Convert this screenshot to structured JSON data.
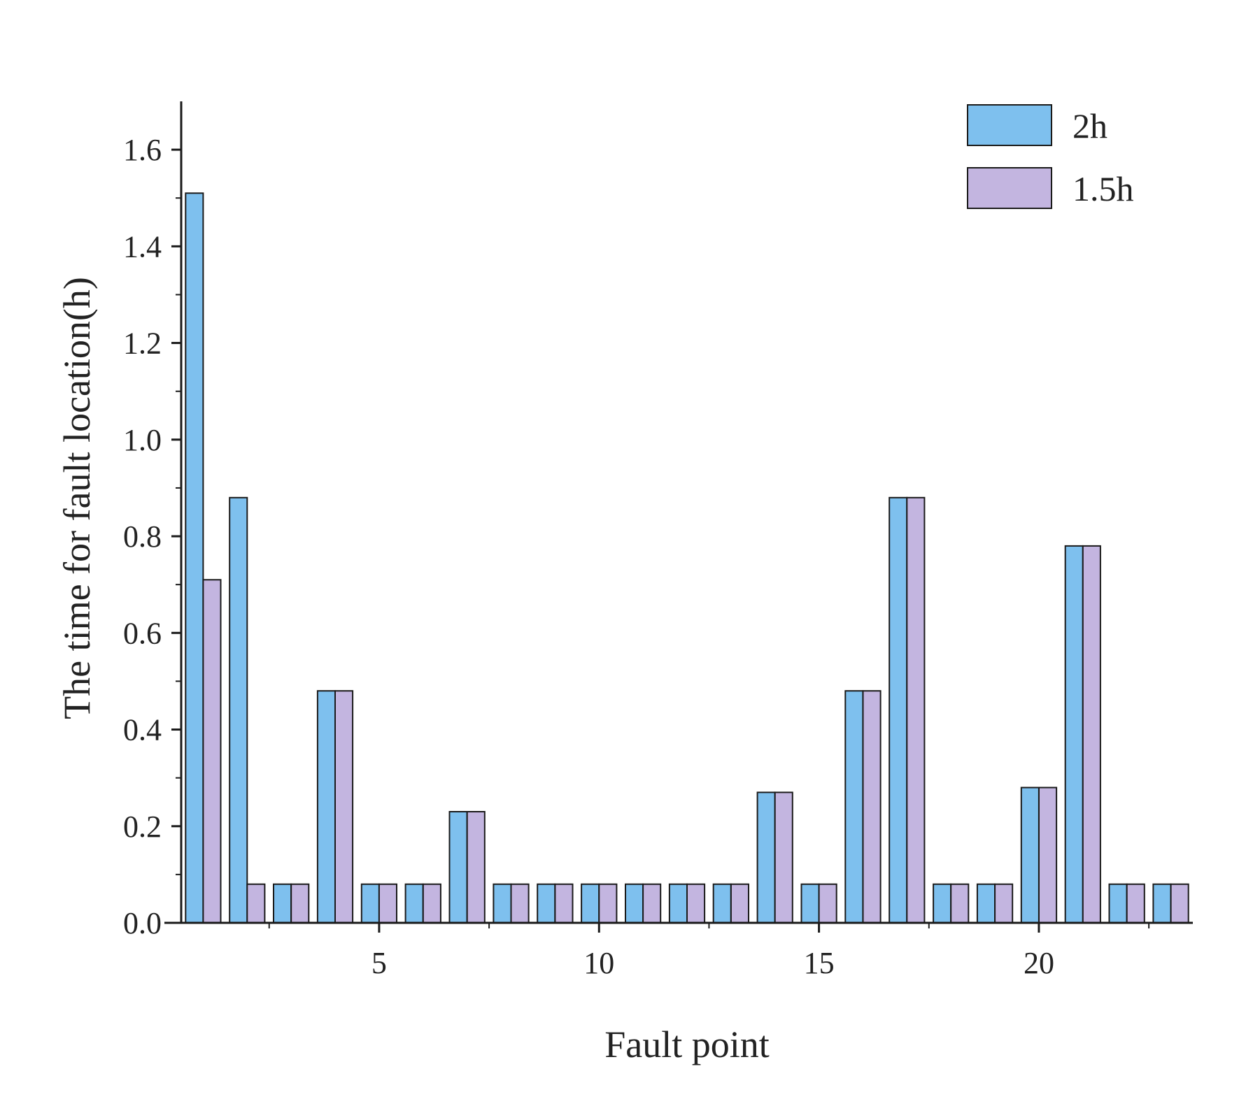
{
  "chart_data": {
    "type": "bar",
    "title": "",
    "xlabel": "Fault point",
    "ylabel": "The time for fault location(h)",
    "categories": [
      1,
      2,
      3,
      4,
      5,
      6,
      7,
      8,
      9,
      10,
      11,
      12,
      13,
      14,
      15,
      16,
      17,
      18,
      19,
      20,
      21,
      22,
      23
    ],
    "x_tick_labels": [
      "5",
      "10",
      "15",
      "20"
    ],
    "x_tick_values": [
      5,
      10,
      15,
      20
    ],
    "y_tick_labels": [
      "0.0",
      "0.2",
      "0.4",
      "0.6",
      "0.8",
      "1.0",
      "1.2",
      "1.4",
      "1.6"
    ],
    "y_tick_values": [
      0.0,
      0.2,
      0.4,
      0.6,
      0.8,
      1.0,
      1.2,
      1.4,
      1.6
    ],
    "ylim": [
      0,
      1.7
    ],
    "xlim": [
      0.5,
      23.5
    ],
    "grid": false,
    "legend_position": "top-right",
    "series": [
      {
        "name": "2h",
        "color": "#7EC0EE",
        "values": [
          1.51,
          0.88,
          0.08,
          0.48,
          0.08,
          0.08,
          0.23,
          0.08,
          0.08,
          0.08,
          0.08,
          0.08,
          0.08,
          0.27,
          0.08,
          0.48,
          0.88,
          0.08,
          0.08,
          0.28,
          0.78,
          0.08,
          0.08
        ]
      },
      {
        "name": "1.5h",
        "color": "#C3B5E0",
        "values": [
          0.71,
          0.08,
          0.08,
          0.48,
          0.08,
          0.08,
          0.23,
          0.08,
          0.08,
          0.08,
          0.08,
          0.08,
          0.08,
          0.27,
          0.08,
          0.48,
          0.88,
          0.08,
          0.08,
          0.28,
          0.78,
          0.08,
          0.08
        ]
      }
    ]
  }
}
